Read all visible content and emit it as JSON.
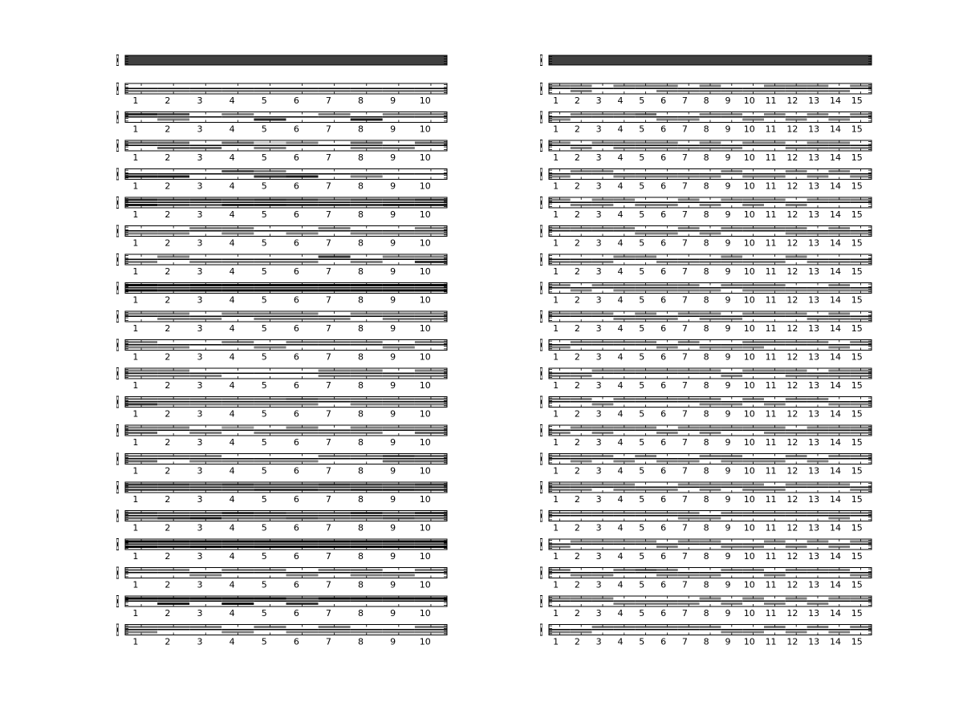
{
  "chart_data": [
    {
      "type": "heatmap",
      "panel": "left",
      "colormap": "gray",
      "header_bar": {
        "value": 0.75
      },
      "x_ticks": [
        "1",
        "2",
        "3",
        "4",
        "5",
        "6",
        "7",
        "8",
        "9",
        "10"
      ],
      "y_ticks": [
        "0",
        "1",
        "2",
        "3",
        "4",
        "5",
        "6",
        "7",
        "8",
        "9",
        "10"
      ],
      "rows": [
        "0,0.5,0,0.5,0,0.5,0,0.5,0,0.5,0,0.5,0,0.5,0,0.5,0,0.5,0,0.5",
        "0.85,0,0.7,0.5,0,0,0.5,0,0,0.85,0,0,0.5,0,0,0.9,0.5,0,0.5,0",
        "0.6,0,0.6,0.6,0,0.6,0.6,0,0.2,0.5,0.5,0,0,0,0.6,0.5,0,0.5,0.6,0",
        "0,0.9,0,0.9,0,0,0.7,0,0.5,0.8,0,0.9,0,0,0,0.5,0,0,0,0",
        "0.85,0.9,0.75,0.7,0.8,0.6,0.75,0.85,0.8,0.85,0.75,0.8,0.6,0.8,0.7,0.75,0.7,0.85,0.8,0.85",
        "0,0.5,0,0.5,0.5,0,0.5,0.5,0,0,0,0.5,0.5,0,0,0.5,0,0.5,0.5,0.5",
        "0,0.5,0.5,0,0,0.5,0,0.5,0,0.5,0,0.5,0.8,0,0,0.5,0.5,0,0.5,0.8",
        "1,1,0.9,0.9,1,1,1,1,1,1,1,1,1,1,1,1,1,1,1,1",
        "0.5,0,0.5,0.5,0,0.5,0.5,0,0.5,0.5,0.5,0.5,0,0.5,0.5,0,0.5,0.5,0.5,0.5",
        "0.5,0.5,0,0.5,0,0,0.5,0,0,0.5,0.5,0,0.5,0,0.5,0,0,0.5,0.5,0",
        "0.5,0.5,0.5,0.5,0,0.5,0,0,0,0,0,0,0.5,0.5,0.5,0.5,0,0.5,0.5,0.5",
        "0.5,0.8,0.5,0.5,0.5,0.5,0.5,0.5,0.5,0.5,0.6,0.5,0.5,0,0.5,0.5,0.5,0.5,0.5,0.5",
        "0.5,0.6,0.5,0,0,0.5,0.4,0,0,0.5,0.5,0.5,0,0.5,0.5,0.5,0.5,0,0.5,0.6",
        "0.5,0.6,0.5,0,0.5,0.5,0,0.5,0,0.5,0,0.5,0.5,0,0.5,0,0.7,0.6,0.6,0.6",
        "0.8,0.7,0.8,0.7,0.7,0.7,0.8,0.7,0.7,0.8,0.7,0.8,0.8,0.7,0.75,0.8,0.7,0.8,0.8,0.75",
        "0.7,0.6,0.6,0.8,0.6,0.9,0.8,0.6,0.7,0.6,0.6,0.7,0.6,0.6,0.8,0.6,0.6,0.7,0.8,0.6",
        "1,1,1,0.9,1,1,1,0.95,1,1,1,1,1,1,1,1,1,1,1,1",
        "0.5,0,0.5,0,0,0.5,0.5,0,0.5,0,0,0.5,0.5,0,0.5,0.5,0,0.5,0.5,0",
        "1,0,1,0.9,1,0,1,0.95,1,0,0.75,0.8,1,0,1,0,1,0,1,0",
        "0.5,0.5,0.5,0,0.5,0,0,0.5,0.5,0,0,0.5,0.5,0.5,0,0.5,0,0.5,0.5,0.5"
      ]
    },
    {
      "type": "heatmap",
      "panel": "right",
      "colormap": "gray",
      "header_bar": {
        "value": 0.75
      },
      "x_ticks": [
        "1",
        "2",
        "3",
        "4",
        "5",
        "6",
        "7",
        "8",
        "9",
        "10",
        "11",
        "12",
        "13",
        "14",
        "15"
      ],
      "y_ticks": [
        "0",
        "1",
        "2",
        "3",
        "4",
        "5",
        "6",
        "7",
        "8",
        "9",
        "10"
      ],
      "rows": [
        "0.5,0,0.5,0.5,0,0,0.5,0,0.5,0,0.5,0.5,0,0.5,0.5,0.5,0,0.5,0,0.5,0.5,0.5,0.5,0.5,0.5,0.5,0,0.5,0.5,0",
        "0,0.5,0.5,0,0.5,0,0.5,0,0.6,0,0,0.5,0,0.5,0.5,0,0.5,0,0,0.5,0.5,0,0,0.5,0.5,0,0,0.5,0.5,0",
        "0.5,0,0,0.5,0.5,0,0.5,0.5,0.5,0.5,0.5,0.5,0,0.5,0.5,0.5,0,0.5,0.5,0,0.5,0,0,0.5,0.5,0.5,0.5,0.5,0,0.5",
        "0,0.5,0.5,0,0.5,0,0,0.5,0,0.5,0,0.5,0,0.5,0,0.5,0.5,0,0,0.5,0,0.5,0.5,0,0,0.5,0.5,0,0,0.5",
        "0.5,0,0,0.5,0.5,0.5,0.5,0,0,0.5,0,0.5,0.5,0,0,0.5,0.5,0,0.5,0.5,0.5,0,0,0.5,0.5,0,0.5,0,0.5,0",
        "0.5,0,0.5,0,0.5,0,0.5,0,0,0.5,0,0.5,0.5,0,0,0.5,0.5,0,0.5,0,0.5,0,0.5,0.5,0,0.5,0.5,0.5,0,0.5",
        "0,0.5,0,0.5,0,0.5,0.5,0,0.5,0,0,0.5,0,0.5,0,0.5,0.5,0.5,0,0.5,0,0.5,0.5,0,0,0.5,0,0.5,0,0.5",
        "0.5,0,0,0.5,0.5,0,0.5,0.5,0.5,0.5,0.5,0.5,0.5,0.5,0,0.5,0.5,0,0.5,0.5,0.5,0.5,0,0.5,0,0.5,0.5,0.5,0,0.5",
        "0.5,0,0.5,0,0.5,0,0,0.5,0.5,0.5,0,0.5,0.5,0,0.5,0.5,0,0.5,0.5,0,0.5,0,0.5,0,0,0.5,0.5,0.5,0,0.5",
        "0,0.5,0.5,0,0.5,0,0.5,0,0.5,0,0,0.5,0.5,0,0,0.5,0,0.5,0.5,0.5,0.5,0,0.5,0,0.5,0,0,0.5,0.5,0",
        "0,0.5,0,0.5,0.5,0,0.5,0,0.5,0,0.5,0,0.5,0,0.5,0,0,0.5,0.5,0,0.5,0,0.5,0.5,0,0.5,0.5,0.5,0.5,0.5",
        "0.5,0,0.5,0,0,0.5,0.5,0,0.5,0,0.5,0,0.5,0,0.5,0.5,0,0.5,0.5,0,0,0.5,0.5,0,0.5,0,0,0.5,0,0.5",
        "0,0.5,0.5,0,0.5,0.5,0.5,0,0.5,0,0,0.5,0.5,0,0.5,0.5,0.5,0,0.5,0,0.5,0.5,0,0.5,0.5,0.5,0.5,0.5,0.5,0.5",
        "0.5,0,0.5,0.5,0.5,0,0,0.5,0.5,0,0,0.5,0,0.5,0.5,0,0.5,0.5,0,0.5,0,0.5,0.5,0,0,0.5,0.5,0,0.5,0",
        "0.5,0.5,0.5,0.5,0.5,0,0.5,0.5,0,0.5,0,0.5,0.5,0,0.5,0.5,0.5,0,0.5,0.5,0,0.5,0.5,0,0.5,0,0.5,0,0,0.5",
        "0.5,0,0.5,0,0.5,0,0.5,0,0.5,0,0.5,0,0.5,0.5,0,0.5,0.5,0,0.5,0,0.5,0,0.5,0,0.5,0,0.5,0.5,0.5,0",
        "0,0.5,0.5,0,0.5,0,0.5,0,0.5,0,0,0.5,0.5,0,0.5,0,0,0.5,0,0.5,0.5,0,0,0.5,0.5,0,0,0.5,0.5,0",
        "0.5,0,0,0.5,0,0.5,0.5,0,0.6,0,0.5,0.5,0,0.5,0,0.5,0.5,0,0.5,0,0,0.5,0.5,0,0.5,0,0.5,0,0,0.5",
        "0.5,0,0.5,0,0.5,0,0,0.5,0,0.5,0,0.5,0,0.5,0.5,0,0,0.5,0.5,0,0,0.5,0.5,0,0,0.5,0.5,0,0.5,0",
        "0,0.5,0,0.5,0.5,0,0.5,0,0.5,0,0.5,0,0.5,0,0.5,0,0,0.5,0,0.5,0.5,0,0,0.5,0.5,0,0,0.5,0.5,0"
      ]
    }
  ]
}
